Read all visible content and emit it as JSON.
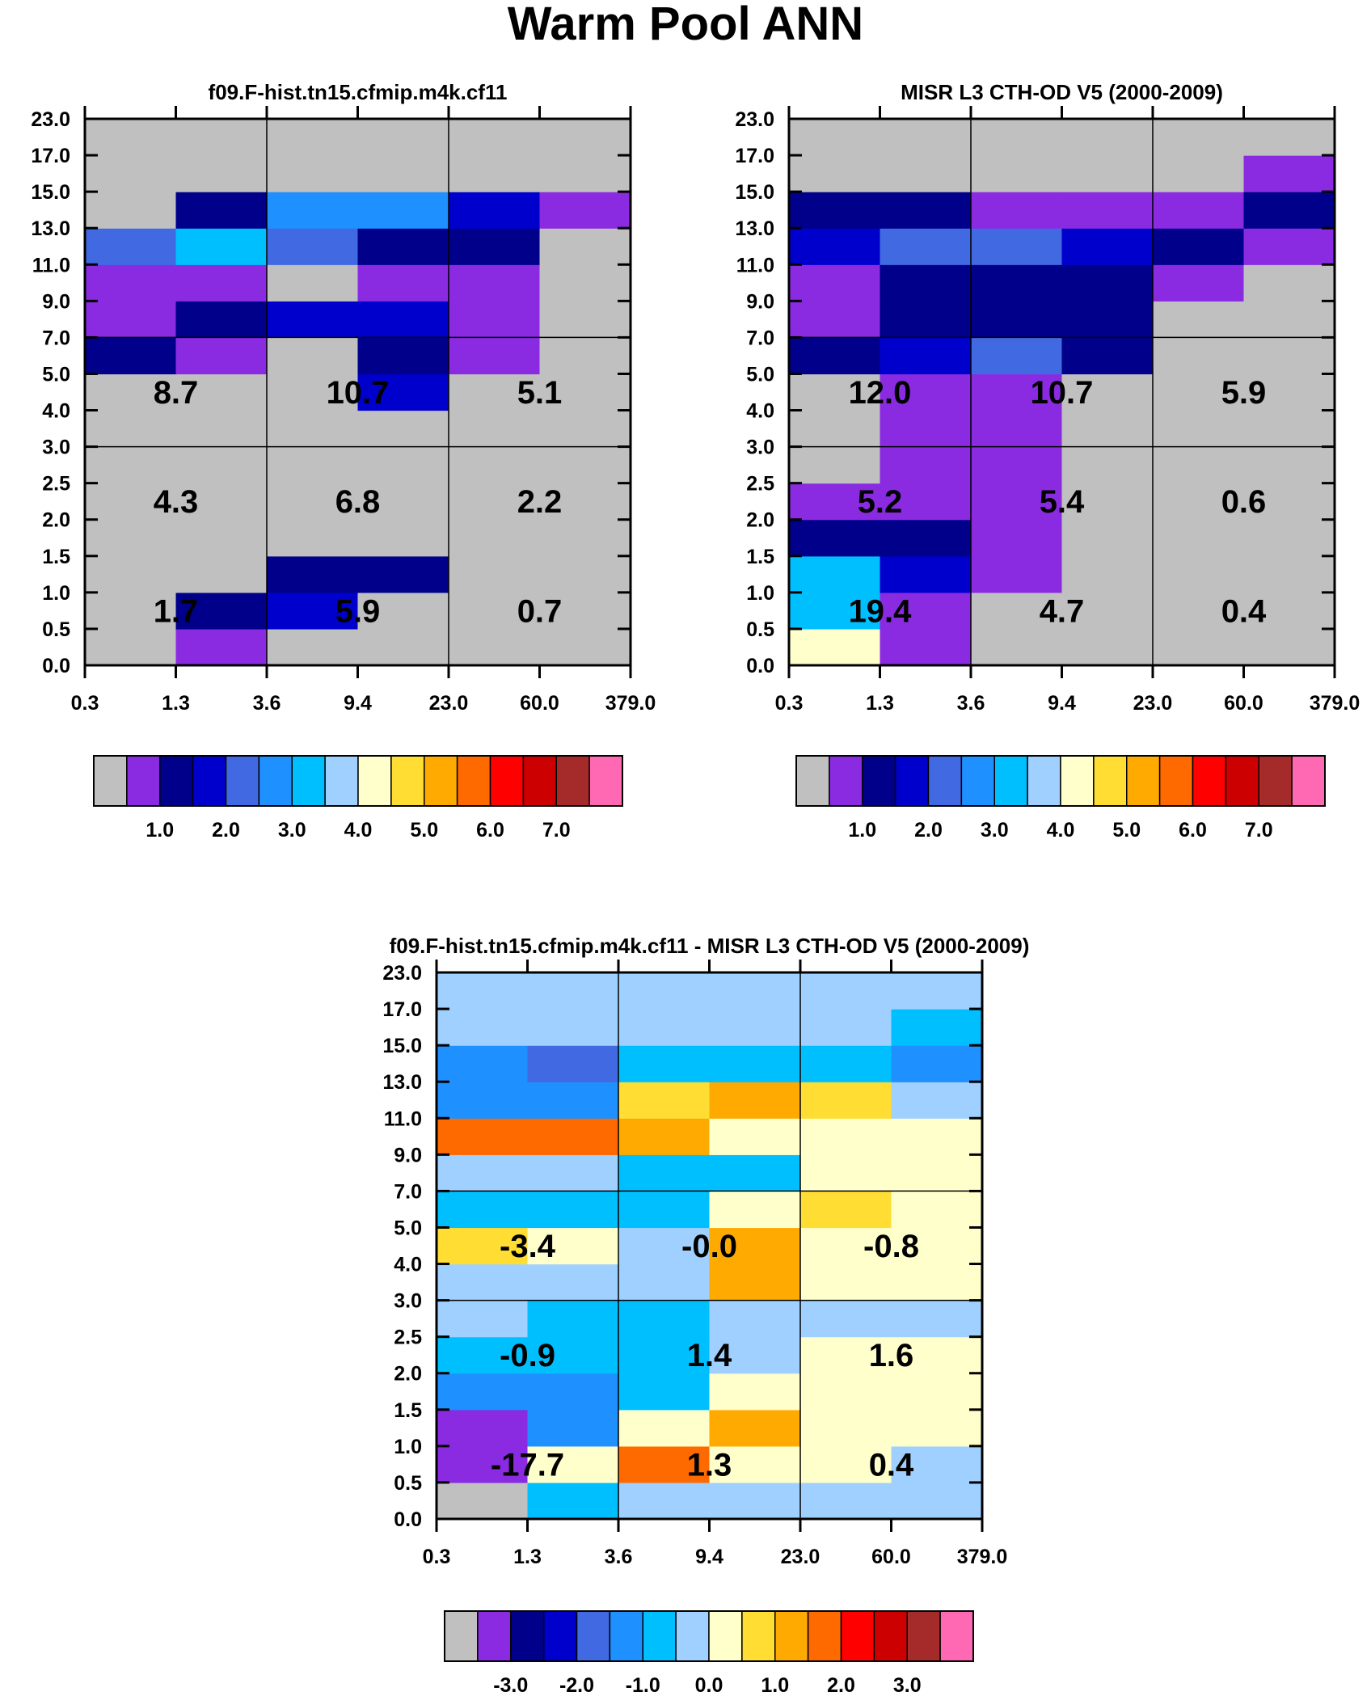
{
  "title": "Warm Pool ANN",
  "colors": {
    "levels": [
      "#c0c0c0",
      "#8a2be2",
      "#00008b",
      "#0000cd",
      "#4169e1",
      "#1e90ff",
      "#00bfff",
      "#a0d0ff",
      "#ffffcc",
      "#ffdd33",
      "#ffaa00",
      "#ff6a00",
      "#ff0000",
      "#cc0000",
      "#a52a2a",
      "#ff69b4"
    ],
    "grid": "#000000"
  },
  "chart_data": [
    {
      "type": "heatmap",
      "title": "f09.F-hist.tn15.cfmip.m4k.cf11",
      "xlabel": "",
      "ylabel": "",
      "x_ticks": [
        "0.3",
        "1.3",
        "3.6",
        "9.4",
        "23.0",
        "60.0",
        "379.0"
      ],
      "y_ticks": [
        "0.0",
        "0.5",
        "1.0",
        "1.5",
        "2.0",
        "2.5",
        "3.0",
        "4.0",
        "5.0",
        "7.0",
        "9.0",
        "11.0",
        "13.0",
        "15.0",
        "17.0",
        "23.0"
      ],
      "cell_levels": [
        [
          0,
          1,
          0,
          0,
          0,
          0
        ],
        [
          0,
          2,
          3,
          0,
          0,
          0
        ],
        [
          0,
          0,
          2,
          2,
          0,
          0
        ],
        [
          0,
          0,
          0,
          0,
          0,
          0
        ],
        [
          0,
          0,
          0,
          0,
          0,
          0
        ],
        [
          0,
          0,
          0,
          0,
          0,
          0
        ],
        [
          0,
          0,
          0,
          0,
          0,
          0
        ],
        [
          0,
          0,
          0,
          3,
          0,
          0
        ],
        [
          2,
          1,
          0,
          2,
          1,
          0
        ],
        [
          1,
          2,
          3,
          3,
          1,
          0
        ],
        [
          1,
          1,
          0,
          1,
          1,
          0
        ],
        [
          4,
          6,
          4,
          2,
          2,
          0
        ],
        [
          0,
          2,
          5,
          5,
          3,
          1
        ],
        [
          0,
          0,
          0,
          0,
          0,
          0
        ],
        [
          0,
          0,
          0,
          0,
          0,
          0
        ]
      ],
      "box_values": [
        [
          "1.7",
          "5.9",
          "0.7"
        ],
        [
          "4.3",
          "6.8",
          "2.2"
        ],
        [
          "8.7",
          "10.7",
          "5.1"
        ]
      ],
      "colorbar": {
        "n_boxes": 16,
        "labels": [
          "1.0",
          "2.0",
          "3.0",
          "4.0",
          "5.0",
          "6.0",
          "7.0"
        ]
      }
    },
    {
      "type": "heatmap",
      "title": "MISR L3 CTH-OD V5 (2000-2009)",
      "xlabel": "",
      "ylabel": "",
      "x_ticks": [
        "0.3",
        "1.3",
        "3.6",
        "9.4",
        "23.0",
        "60.0",
        "379.0"
      ],
      "y_ticks": [
        "0.0",
        "0.5",
        "1.0",
        "1.5",
        "2.0",
        "2.5",
        "3.0",
        "4.0",
        "5.0",
        "7.0",
        "9.0",
        "11.0",
        "13.0",
        "15.0",
        "17.0",
        "23.0"
      ],
      "cell_levels": [
        [
          8,
          1,
          0,
          0,
          0,
          0
        ],
        [
          6,
          1,
          0,
          0,
          0,
          0
        ],
        [
          6,
          3,
          1,
          0,
          0,
          0
        ],
        [
          2,
          2,
          1,
          0,
          0,
          0
        ],
        [
          1,
          1,
          1,
          0,
          0,
          0
        ],
        [
          0,
          1,
          1,
          0,
          0,
          0
        ],
        [
          0,
          1,
          1,
          0,
          0,
          0
        ],
        [
          0,
          1,
          1,
          0,
          0,
          0
        ],
        [
          2,
          3,
          4,
          2,
          0,
          0
        ],
        [
          1,
          2,
          2,
          2,
          0,
          0
        ],
        [
          1,
          2,
          2,
          2,
          1,
          0
        ],
        [
          3,
          4,
          4,
          3,
          2,
          1
        ],
        [
          2,
          2,
          1,
          1,
          1,
          2
        ],
        [
          0,
          0,
          0,
          0,
          0,
          1
        ],
        [
          0,
          0,
          0,
          0,
          0,
          0
        ]
      ],
      "box_values": [
        [
          "19.4",
          "4.7",
          "0.4"
        ],
        [
          "5.2",
          "5.4",
          "0.6"
        ],
        [
          "12.0",
          "10.7",
          "5.9"
        ]
      ],
      "colorbar": {
        "n_boxes": 16,
        "labels": [
          "1.0",
          "2.0",
          "3.0",
          "4.0",
          "5.0",
          "6.0",
          "7.0"
        ]
      }
    },
    {
      "type": "heatmap",
      "title": "f09.F-hist.tn15.cfmip.m4k.cf11 - MISR L3 CTH-OD V5 (2000-2009)",
      "xlabel": "",
      "ylabel": "",
      "x_ticks": [
        "0.3",
        "1.3",
        "3.6",
        "9.4",
        "23.0",
        "60.0",
        "379.0"
      ],
      "y_ticks": [
        "0.0",
        "0.5",
        "1.0",
        "1.5",
        "2.0",
        "2.5",
        "3.0",
        "4.0",
        "5.0",
        "7.0",
        "9.0",
        "11.0",
        "13.0",
        "15.0",
        "17.0",
        "23.0"
      ],
      "cell_levels": [
        [
          0,
          6,
          7,
          7,
          7,
          7
        ],
        [
          1,
          8,
          11,
          8,
          8,
          7
        ],
        [
          1,
          5,
          8,
          10,
          8,
          8
        ],
        [
          5,
          5,
          6,
          8,
          8,
          8
        ],
        [
          6,
          6,
          6,
          7,
          8,
          8
        ],
        [
          7,
          6,
          6,
          7,
          7,
          7
        ],
        [
          7,
          7,
          7,
          10,
          8,
          8
        ],
        [
          9,
          8,
          7,
          10,
          8,
          8
        ],
        [
          6,
          6,
          6,
          8,
          9,
          8
        ],
        [
          7,
          7,
          6,
          6,
          8,
          8
        ],
        [
          11,
          11,
          10,
          8,
          8,
          8
        ],
        [
          5,
          5,
          9,
          10,
          9,
          7
        ],
        [
          5,
          4,
          6,
          6,
          6,
          5
        ],
        [
          7,
          7,
          7,
          7,
          7,
          6
        ],
        [
          7,
          7,
          7,
          7,
          7,
          7
        ]
      ],
      "box_values": [
        [
          "-17.7",
          "1.3",
          "0.4"
        ],
        [
          "-0.9",
          "1.4",
          "1.6"
        ],
        [
          "-3.4",
          "-0.0",
          "-0.8"
        ]
      ],
      "colorbar": {
        "n_boxes": 16,
        "labels": [
          "-3.0",
          "-2.0",
          "-1.0",
          "0.0",
          "1.0",
          "2.0",
          "3.0"
        ]
      }
    }
  ]
}
